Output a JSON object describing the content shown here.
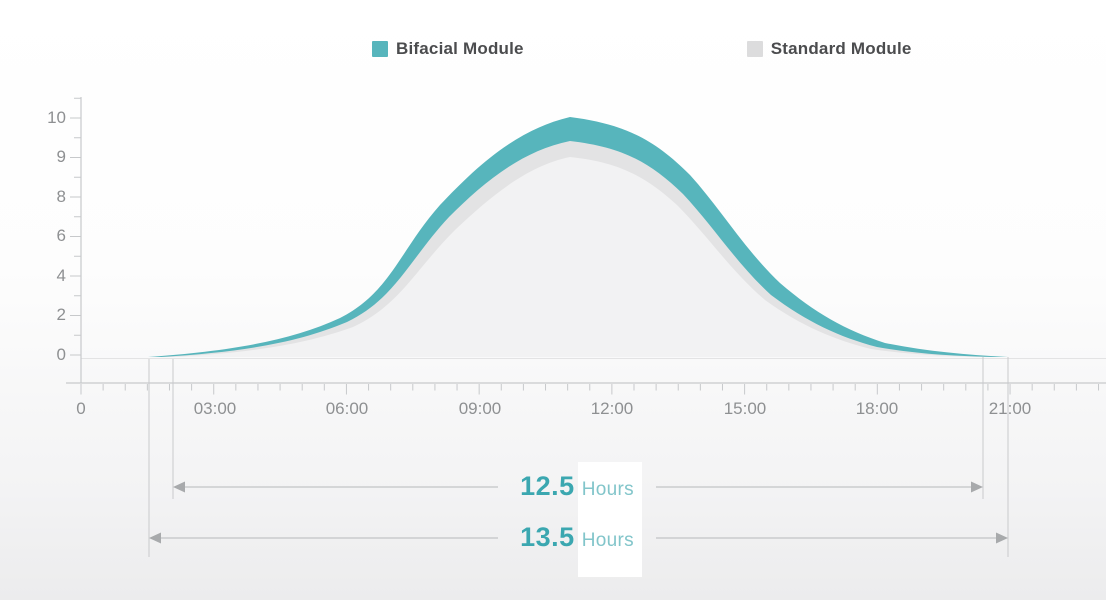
{
  "legend": {
    "items": [
      {
        "label": "Bifacial Module",
        "color": "#57b5bc"
      },
      {
        "label": "Standard Module",
        "color": "#dcdcdd"
      }
    ]
  },
  "axes": {
    "y_ticks": [
      "10",
      "9",
      "8",
      "6",
      "4",
      "2",
      "0"
    ],
    "x_ticks": [
      "0",
      "03:00",
      "06:00",
      "09:00",
      "12:00",
      "15:00",
      "18:00",
      "21:00"
    ]
  },
  "annotations": [
    {
      "value": "12.5",
      "unit": "Hours"
    },
    {
      "value": "13.5",
      "unit": "Hours"
    }
  ],
  "colors": {
    "bifacial_fill": "#57b5bc",
    "standard_edge": "#e3e3e4",
    "standard_fill": "#f2f2f3",
    "axis_line": "#c7c9cb",
    "axis_text": "#8e9092",
    "legend_text": "#4b4c4e",
    "annotation_value_text": "#3ba7b0",
    "annotation_unit_text": "#82c5ca",
    "arrow": "#aeb0b2"
  },
  "chart_data": {
    "type": "area",
    "title": "",
    "xlabel": "",
    "ylabel": "",
    "x": [
      "01:30",
      "02:00",
      "03:00",
      "04:30",
      "06:00",
      "07:30",
      "09:00",
      "10:30",
      "11:00",
      "12:00",
      "13:30",
      "15:00",
      "16:30",
      "18:00",
      "19:30",
      "20:30",
      "21:00"
    ],
    "series": [
      {
        "name": "Bifacial Module",
        "color": "#57b5bc",
        "values": [
          0,
          0.1,
          0.4,
          1.0,
          2.1,
          4.6,
          9.1,
          9.9,
          10.0,
          9.9,
          8.2,
          5.7,
          2.4,
          0.7,
          0.2,
          0.1,
          0
        ]
      },
      {
        "name": "Standard Module",
        "color": "#e3e3e4",
        "values": [
          0,
          0,
          0.2,
          0.8,
          1.7,
          4.0,
          8.3,
          9.2,
          9.3,
          9.2,
          7.6,
          4.9,
          1.9,
          0.4,
          0.1,
          0,
          0
        ]
      }
    ],
    "yaxis_tick_labels": [
      "10",
      "9",
      "8",
      "6",
      "4",
      "2",
      "0"
    ],
    "xaxis_tick_labels": [
      "0",
      "03:00",
      "06:00",
      "09:00",
      "12:00",
      "15:00",
      "18:00",
      "21:00"
    ],
    "ylim": [
      0,
      10
    ],
    "grid": false,
    "legend_position": "top-center",
    "duration_annotations": [
      {
        "series": "Standard Module",
        "value": 12.5,
        "unit": "Hours"
      },
      {
        "series": "Bifacial Module",
        "value": 13.5,
        "unit": "Hours"
      }
    ]
  }
}
